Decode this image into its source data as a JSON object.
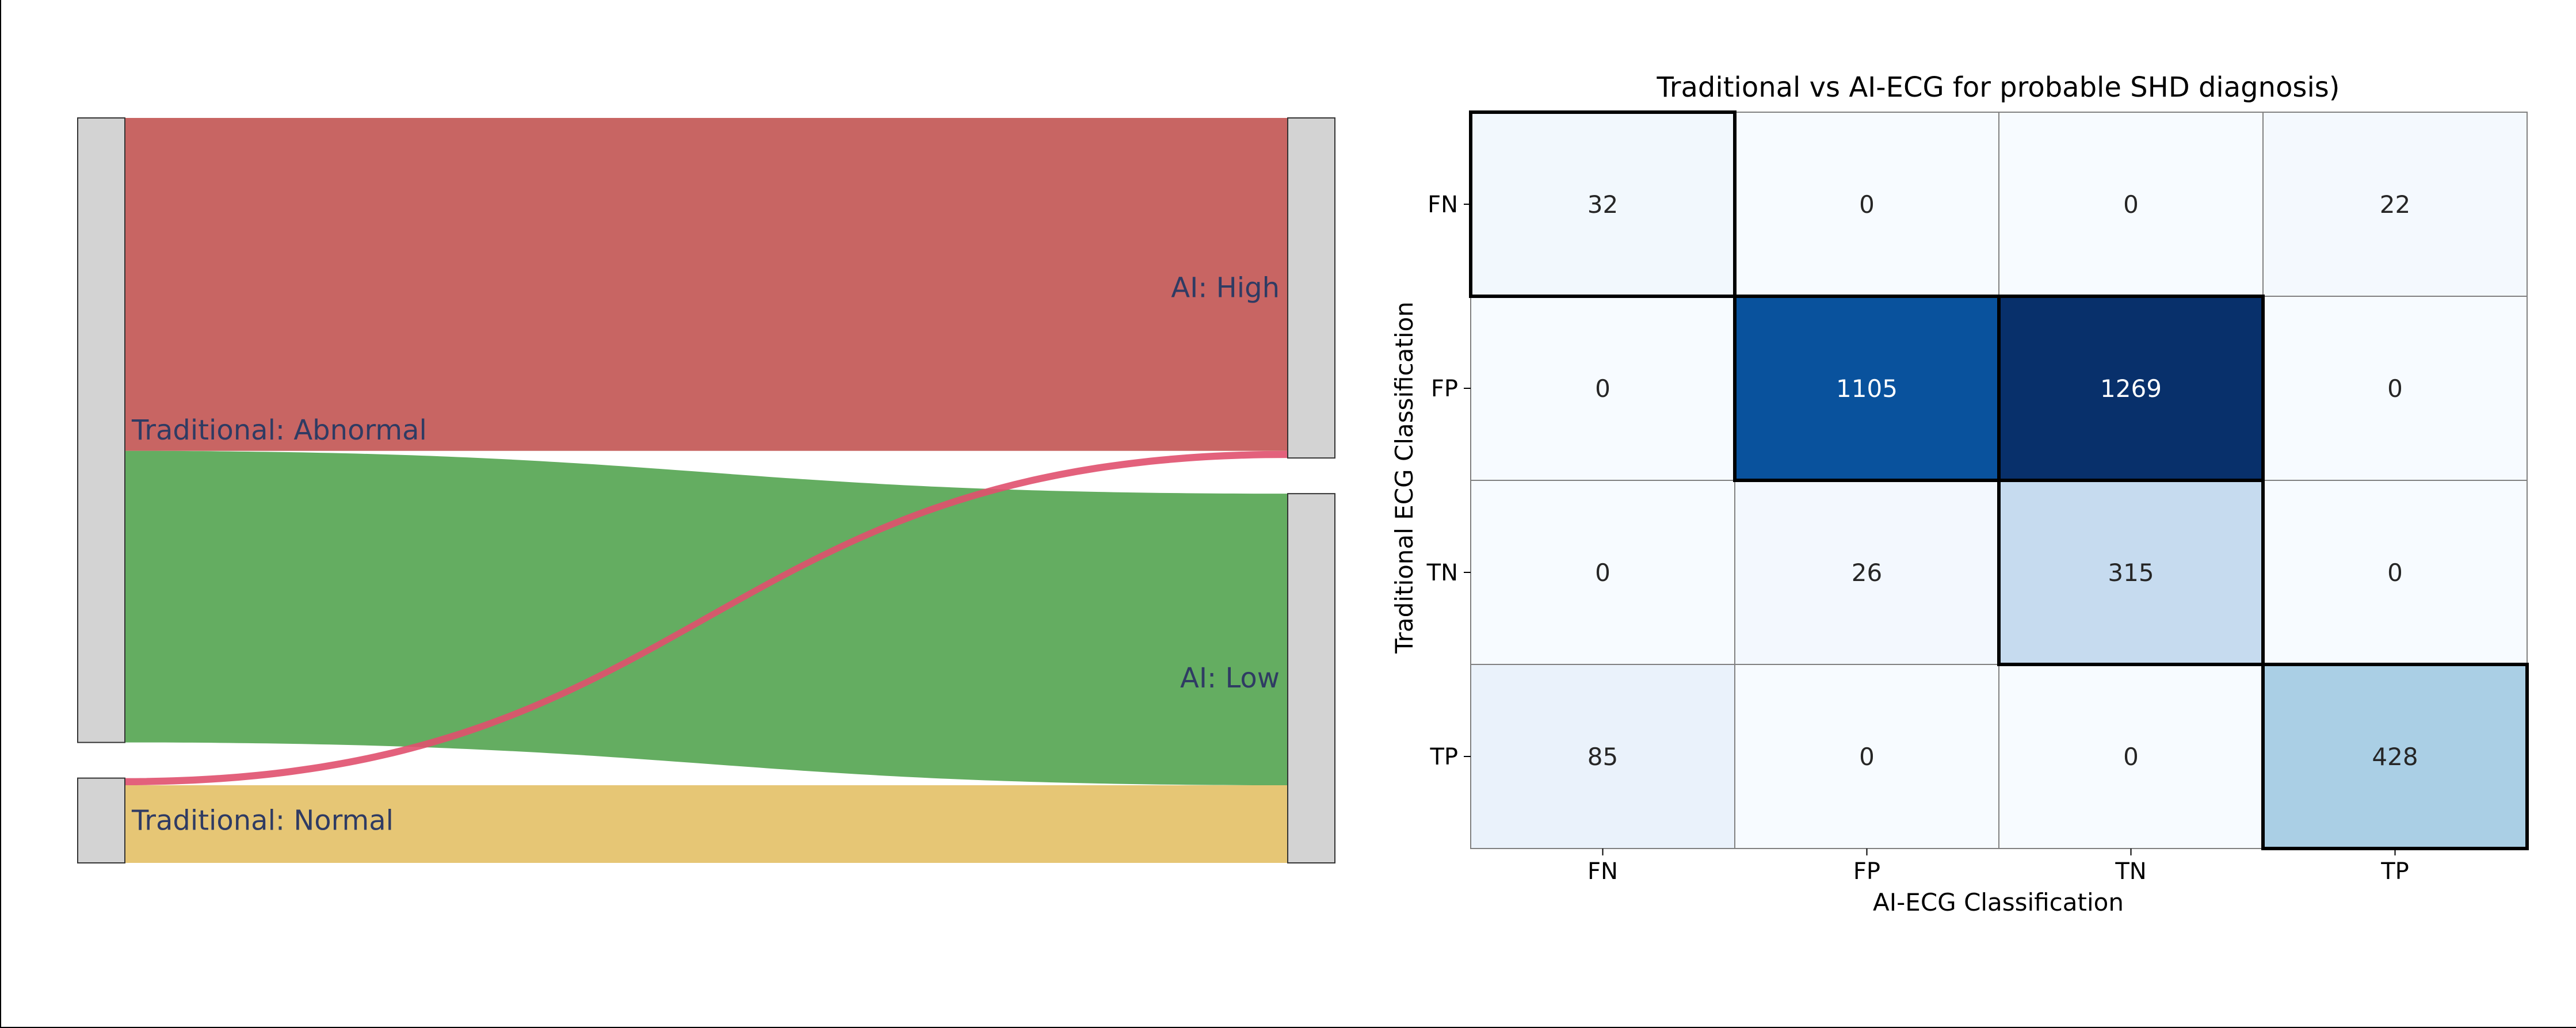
{
  "chart_data": [
    {
      "type": "sankey",
      "left_nodes": [
        {
          "id": "trad_abnormal",
          "label": "Traditional: Abnormal",
          "total": 2718
        },
        {
          "id": "trad_normal",
          "label": "Traditional: Normal",
          "total": 369
        }
      ],
      "right_nodes": [
        {
          "id": "ai_high",
          "label": "AI: High",
          "total": 1480
        },
        {
          "id": "ai_low",
          "label": "AI: Low",
          "total": 1607
        }
      ],
      "links": [
        {
          "source": "trad_abnormal",
          "target": "ai_high",
          "value": 1449,
          "color": "#c0504d"
        },
        {
          "source": "trad_abnormal",
          "target": "ai_low",
          "value": 1269,
          "color": "#4ea24b"
        },
        {
          "source": "trad_normal",
          "target": "ai_high",
          "value": 31,
          "color": "#e0506e"
        },
        {
          "source": "trad_normal",
          "target": "ai_low",
          "value": 338,
          "color": "#e3be62"
        }
      ],
      "node_color": "#d3d3d3",
      "label_color": "#2f3b63"
    },
    {
      "type": "heatmap",
      "title": "Traditional vs AI-ECG for probable SHD diagnosis)",
      "xlabel": "AI-ECG Classification",
      "ylabel": "Traditional ECG Classification",
      "x_categories": [
        "FN",
        "FP",
        "TN",
        "TP"
      ],
      "y_categories": [
        "FN",
        "FP",
        "TN",
        "TP"
      ],
      "values": [
        [
          32,
          0,
          0,
          22
        ],
        [
          0,
          1105,
          1269,
          0
        ],
        [
          0,
          26,
          315,
          0
        ],
        [
          85,
          0,
          0,
          428
        ]
      ],
      "colormap": "Blues",
      "vmin": 0,
      "vmax": 1269,
      "highlighted_cells": [
        [
          0,
          0
        ],
        [
          1,
          1
        ],
        [
          1,
          2
        ],
        [
          2,
          2
        ],
        [
          3,
          3
        ]
      ]
    }
  ]
}
